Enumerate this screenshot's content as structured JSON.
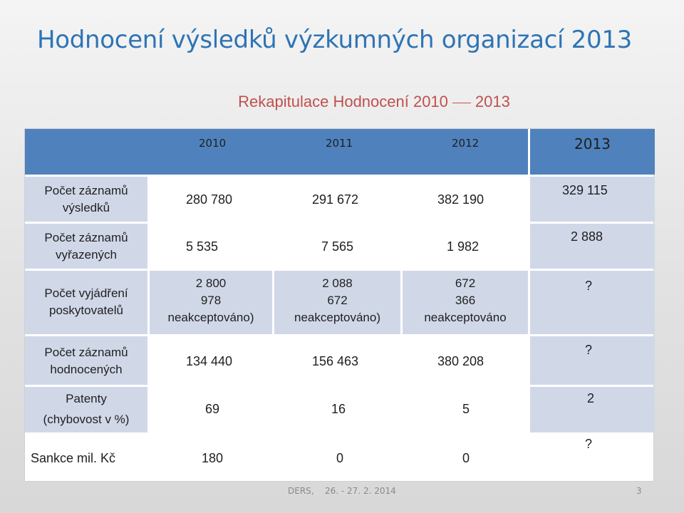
{
  "slide": {
    "title": "Hodnocení výsledků výzkumných organizací 2013",
    "subtitle_part1": "Rekapitulace Hodnocení 2010",
    "subtitle_part2": "2013",
    "page_number": "3"
  },
  "table": {
    "headers": [
      "2010",
      "2011",
      "2012",
      "2013"
    ],
    "rows": [
      {
        "label_line1": "Počet záznamů",
        "label_line2": "výsledků",
        "v2010": "280 780",
        "v2011": "291 672",
        "v2012": "382 190",
        "v2013": "329 115"
      },
      {
        "label_line1": "Počet záznamů",
        "label_line2": "vyřazených",
        "v2010": "5 535",
        "v2011": "7 565",
        "v2012": "1 982",
        "v2013": "2 888"
      },
      {
        "label_line1": "Počet vyjádření",
        "label_line2": "poskytovatelů",
        "v2010_a": "2 800",
        "v2010_b": "978",
        "v2010_c": "neakceptováno)",
        "v2011_a": "2 088",
        "v2011_b": "672",
        "v2011_c": "neakceptováno)",
        "v2012_a": "672",
        "v2012_b": "366",
        "v2012_c": "neakceptováno",
        "v2013": "?"
      },
      {
        "label_line1": "Počet záznamů",
        "label_line2": "hodnocených",
        "v2010": "134 440",
        "v2011": "156 463",
        "v2012": "380 208",
        "v2013": "?"
      },
      {
        "label_line1": "Patenty",
        "label_line2": "(chybovost v %)",
        "v2010": "69",
        "v2011": "16",
        "v2012": "5",
        "v2013": "2"
      },
      {
        "label_line1": "Sankce mil. Kč",
        "v2010": "180",
        "v2011": "0",
        "v2012": "0",
        "v2013": "?"
      }
    ]
  },
  "footer": {
    "event": "DERS,",
    "date": "26. - 27. 2. 2014"
  }
}
